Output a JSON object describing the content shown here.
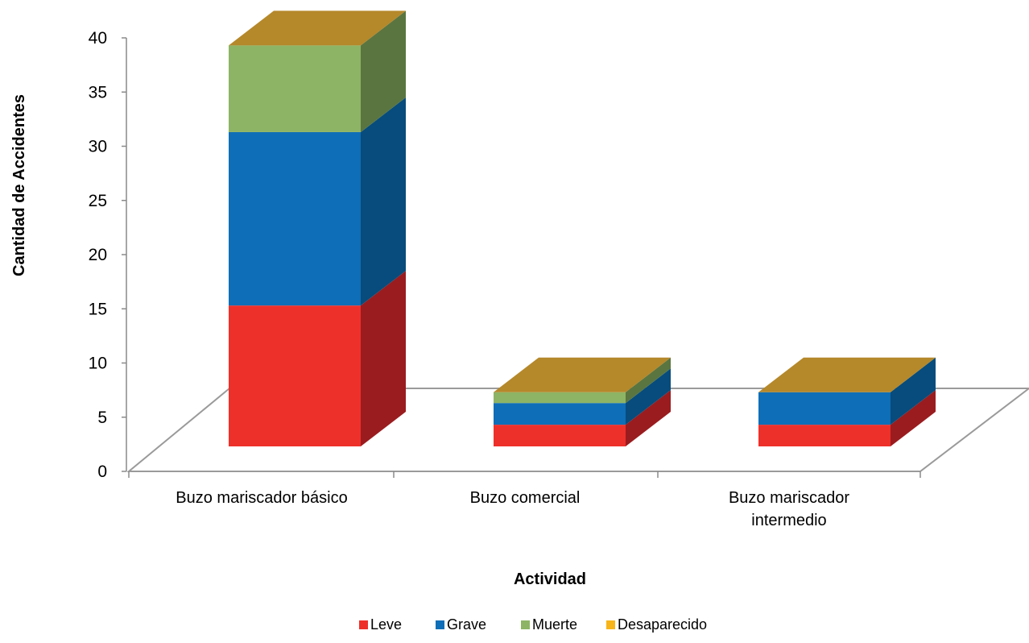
{
  "chart_data": {
    "type": "bar",
    "stacked": true,
    "three_d": true,
    "title": "",
    "xlabel": "Actividad",
    "ylabel": "Cantidad de Accidentes",
    "ylim": [
      0,
      40
    ],
    "yticks": [
      0,
      5,
      10,
      15,
      20,
      25,
      30,
      35,
      40
    ],
    "categories": [
      [
        "Buzo mariscador básico"
      ],
      [
        "Buzo comercial"
      ],
      [
        "Buzo mariscador",
        "intermedio"
      ]
    ],
    "series": [
      {
        "name": "Leve",
        "values": [
          13,
          2,
          2
        ]
      },
      {
        "name": "Grave",
        "values": [
          16,
          2,
          3
        ]
      },
      {
        "name": "Muerte",
        "values": [
          8,
          1,
          0
        ]
      },
      {
        "name": "Desaparecido",
        "values": [
          0,
          0,
          0
        ]
      }
    ],
    "colors": {
      "Leve": {
        "front": "#ee302a",
        "side": "#9a1c1f",
        "top": "#c1272d"
      },
      "Grave": {
        "front": "#0e6eb7",
        "side": "#074c7c",
        "top": "#0b5e9c"
      },
      "Muerte": {
        "front": "#8db464",
        "side": "#5a7540",
        "top": "#78a052"
      },
      "Desaparecido": {
        "front": "#f7b51a",
        "side": "#a67a12",
        "top": "#b5882a"
      }
    },
    "legend_position": "bottom",
    "grid": false
  }
}
